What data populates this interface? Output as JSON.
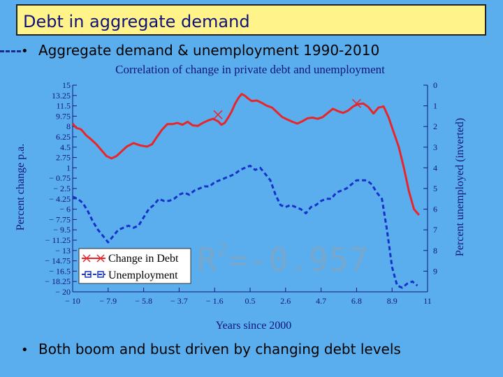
{
  "slide": {
    "title": "Debt in aggregate demand",
    "bullet1": "Aggregate demand & unemployment 1990-2010",
    "bullet2": "Both boom and bust driven by changing debt levels",
    "r2_prefix": "R",
    "r2_exp": "2",
    "r2_value": "=-0.957"
  },
  "colors": {
    "background": "#5aaeee",
    "title_bg": "#fff38a",
    "debt": "#e8262a",
    "unemployment": "#1432c8",
    "axis": "#10147a"
  },
  "chart_data": {
    "type": "line",
    "title": "Correlation of change in private debt and unemployment",
    "xlabel": "Years since 2000",
    "ylabel_left": "Percent change p.a.",
    "ylabel_right": "Percent unemployed (inverted)",
    "x_ticks": [
      "− 10",
      "− 7.9",
      "− 5.8",
      "− 3.7",
      "− 1.6",
      "0.5",
      "2.6",
      "4.7",
      "6.8",
      "8.9",
      "11"
    ],
    "y_left_ticks": [
      "15",
      "13.25",
      "11.5",
      "9.75",
      "8",
      "6.25",
      "4.5",
      "2.75",
      "1",
      "− 0.75",
      "− 2.5",
      "− 4.25",
      "− 6",
      "− 7.75",
      "− 9.5",
      "− 11.25",
      "− 13",
      "− 14.75",
      "− 16.5",
      "− 18.25",
      "− 20"
    ],
    "y_right_ticks": [
      "0",
      "1",
      "2",
      "3",
      "4",
      "5",
      "6",
      "7",
      "8",
      "9"
    ],
    "xlim": [
      -10,
      11
    ],
    "ylim_left": [
      -20,
      15
    ],
    "ylim_right": [
      0,
      10
    ],
    "ylim_right_inverted": true,
    "legend_position": "bottom-left",
    "series": [
      {
        "name": "Change in Debt",
        "axis": "left",
        "color": "#e8262a",
        "style": "solid",
        "x": [
          -10,
          -9.8,
          -9.5,
          -9.2,
          -8.9,
          -8.6,
          -8.3,
          -8.0,
          -7.7,
          -7.4,
          -7.1,
          -6.8,
          -6.4,
          -6.0,
          -5.6,
          -5.3,
          -5.0,
          -4.7,
          -4.4,
          -4.1,
          -3.8,
          -3.5,
          -3.2,
          -2.9,
          -2.6,
          -2.3,
          -2.0,
          -1.7,
          -1.4,
          -1.2,
          -1.0,
          -0.8,
          -0.6,
          -0.4,
          -0.2,
          0.0,
          0.2,
          0.4,
          0.6,
          0.9,
          1.2,
          1.5,
          1.8,
          2.1,
          2.4,
          2.7,
          3.0,
          3.3,
          3.6,
          3.9,
          4.2,
          4.5,
          4.8,
          5.1,
          5.4,
          5.7,
          6.0,
          6.3,
          6.6,
          6.9,
          7.2,
          7.5,
          7.8,
          8.1,
          8.4,
          8.7,
          9.0,
          9.3,
          9.6,
          9.9,
          10.2,
          10.5
        ],
        "y": [
          8.5,
          7.8,
          7.5,
          6.5,
          5.8,
          5.0,
          4.0,
          3.0,
          2.6,
          3.0,
          3.8,
          4.6,
          5.2,
          4.8,
          4.6,
          5.0,
          6.3,
          7.5,
          8.4,
          8.4,
          8.6,
          8.3,
          8.8,
          8.2,
          8.1,
          8.6,
          9.0,
          9.3,
          8.9,
          8.3,
          8.6,
          9.5,
          10.5,
          11.8,
          12.8,
          13.5,
          13.2,
          12.7,
          12.3,
          12.4,
          12.0,
          11.5,
          11.2,
          10.4,
          9.6,
          9.2,
          8.8,
          8.5,
          8.9,
          9.4,
          9.5,
          9.3,
          9.6,
          10.3,
          11.0,
          10.6,
          10.3,
          10.7,
          11.4,
          11.8,
          11.9,
          11.3,
          10.2,
          11.2,
          11.4,
          9.5,
          7.0,
          4.5,
          1.0,
          -3.0,
          -6.0,
          -7.0
        ]
      },
      {
        "name": "Unemployment",
        "axis": "right",
        "color": "#1432c8",
        "style": "dashed",
        "x": [
          -10,
          -9.7,
          -9.4,
          -9.1,
          -8.8,
          -8.5,
          -8.2,
          -7.9,
          -7.6,
          -7.3,
          -7.0,
          -6.7,
          -6.4,
          -6.1,
          -5.8,
          -5.5,
          -5.2,
          -4.9,
          -4.6,
          -4.3,
          -4.0,
          -3.7,
          -3.4,
          -3.1,
          -2.8,
          -2.5,
          -2.2,
          -1.9,
          -1.6,
          -1.3,
          -1.0,
          -0.7,
          -0.4,
          -0.1,
          0.2,
          0.5,
          0.8,
          1.1,
          1.4,
          1.7,
          2.0,
          2.3,
          2.6,
          2.9,
          3.2,
          3.5,
          3.8,
          4.1,
          4.4,
          4.7,
          5.0,
          5.3,
          5.6,
          5.9,
          6.2,
          6.5,
          6.8,
          7.1,
          7.4,
          7.7,
          8.0,
          8.3,
          8.6,
          8.9,
          9.2,
          9.5,
          9.8,
          10.1,
          10.4
        ],
        "y": [
          5.4,
          5.5,
          5.7,
          6.1,
          6.6,
          7.0,
          7.3,
          7.6,
          7.3,
          7.0,
          6.9,
          6.8,
          6.9,
          6.8,
          6.4,
          6.0,
          5.8,
          5.5,
          5.6,
          5.6,
          5.5,
          5.3,
          5.2,
          5.3,
          5.1,
          5.0,
          4.9,
          4.9,
          4.7,
          4.6,
          4.5,
          4.4,
          4.3,
          4.1,
          4.0,
          3.9,
          4.1,
          4.0,
          4.3,
          4.6,
          5.3,
          5.8,
          5.9,
          5.8,
          5.9,
          6.0,
          6.2,
          5.9,
          5.8,
          5.6,
          5.5,
          5.5,
          5.2,
          5.1,
          5.0,
          4.8,
          4.6,
          4.6,
          4.6,
          4.8,
          5.2,
          5.5,
          7.0,
          8.8,
          9.7,
          9.8,
          9.6,
          9.5,
          9.7
        ]
      }
    ]
  }
}
